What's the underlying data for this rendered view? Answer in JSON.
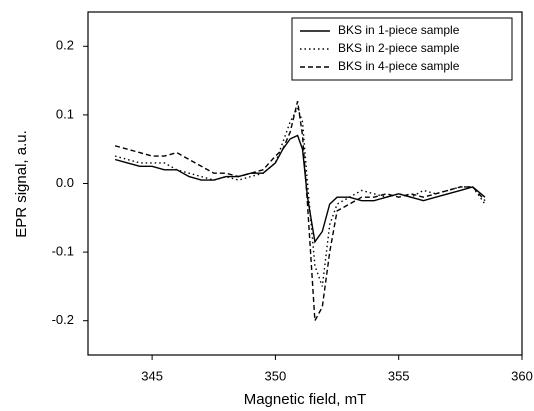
{
  "chart_data": {
    "type": "line",
    "xlabel": "Magnetic field, mT",
    "ylabel": "EPR signal, a.u.",
    "x": [
      343.5,
      344,
      344.5,
      345,
      345.5,
      346,
      346.5,
      347,
      347.5,
      348,
      348.5,
      349,
      349.5,
      350,
      350.3,
      350.6,
      350.9,
      351.1,
      351.3,
      351.6,
      351.9,
      352.2,
      352.5,
      353,
      353.5,
      354,
      354.5,
      355,
      355.5,
      356,
      356.5,
      357,
      357.5,
      358,
      358.5
    ],
    "series": [
      {
        "name": "BKS in 1-piece sample",
        "color": "#000000",
        "linestyle": "solid",
        "values": [
          0.035,
          0.03,
          0.025,
          0.025,
          0.02,
          0.02,
          0.01,
          0.005,
          0.005,
          0.01,
          0.01,
          0.015,
          0.015,
          0.03,
          0.05,
          0.065,
          0.07,
          0.05,
          -0.02,
          -0.085,
          -0.07,
          -0.03,
          -0.02,
          -0.02,
          -0.025,
          -0.025,
          -0.02,
          -0.015,
          -0.02,
          -0.025,
          -0.02,
          -0.015,
          -0.01,
          -0.005,
          -0.02
        ]
      },
      {
        "name": "BKS in 2-piece sample",
        "color": "#000000",
        "linestyle": "dotted",
        "values": [
          0.04,
          0.035,
          0.03,
          0.03,
          0.03,
          0.02,
          0.015,
          0.01,
          0.005,
          0.01,
          0.005,
          0.01,
          0.015,
          0.03,
          0.06,
          0.09,
          0.11,
          0.09,
          0.0,
          -0.12,
          -0.15,
          -0.06,
          -0.03,
          -0.02,
          -0.01,
          -0.015,
          -0.02,
          -0.015,
          -0.02,
          -0.01,
          -0.015,
          -0.01,
          -0.005,
          -0.005,
          -0.03
        ]
      },
      {
        "name": "BKS in 4-piece sample",
        "color": "#000000",
        "linestyle": "dashed",
        "values": [
          0.055,
          0.05,
          0.045,
          0.04,
          0.04,
          0.045,
          0.035,
          0.025,
          0.015,
          0.015,
          0.01,
          0.015,
          0.02,
          0.04,
          0.05,
          0.075,
          0.12,
          0.07,
          -0.03,
          -0.2,
          -0.18,
          -0.1,
          -0.04,
          -0.03,
          -0.02,
          -0.02,
          -0.015,
          -0.02,
          -0.015,
          -0.02,
          -0.015,
          -0.01,
          -0.005,
          -0.005,
          -0.025
        ]
      }
    ],
    "xlim": [
      342.4,
      360
    ],
    "ylim": [
      -0.25,
      0.25
    ],
    "xticks": [
      345,
      350,
      355,
      360
    ],
    "yticks": [
      0.2,
      0.1,
      {
        "value": 0,
        "label": "0.0"
      },
      -0.1,
      -0.2
    ],
    "legend": "upper right"
  }
}
